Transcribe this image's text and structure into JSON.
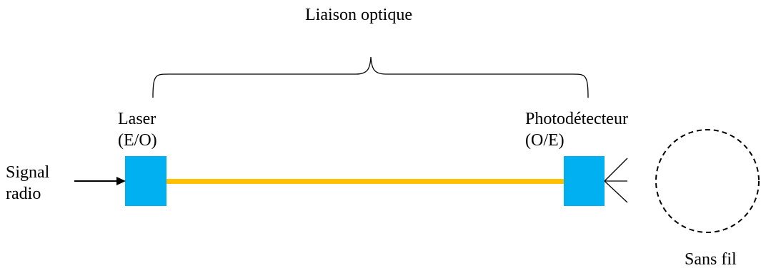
{
  "title": "Liaison optique",
  "laser": {
    "line1": "Laser",
    "line2": "(E/O)"
  },
  "photodetector": {
    "line1": "Photodétecteur",
    "line2": "(O/E)"
  },
  "input": {
    "line1": "Signal",
    "line2": "radio"
  },
  "wireless": {
    "label": "Sans fil"
  },
  "colors": {
    "block": "#00B0F0",
    "fiber": "#FFC000",
    "ink": "#000000"
  }
}
